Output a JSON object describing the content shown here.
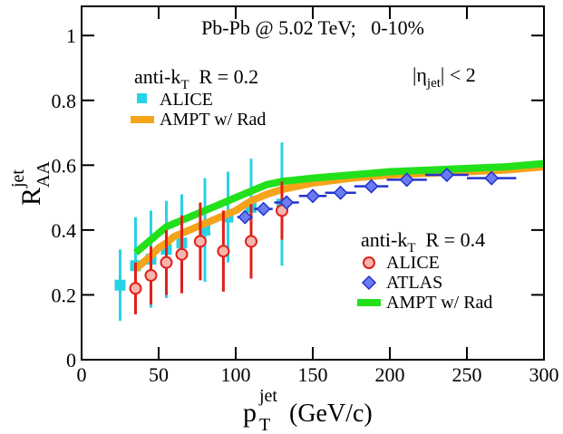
{
  "chart_data": {
    "type": "errorbar",
    "title": "Pb-Pb @ 5.02 TeV;   0-10%",
    "x_label": {
      "main": "p",
      "sup": "jet",
      "sub": "T",
      "rest": " (GeV/c)"
    },
    "y_label": {
      "main": "R",
      "sup": "jet",
      "sub": "AA"
    },
    "annotation": [
      {
        "t": "|η"
      },
      {
        "t": "jet",
        "s": "sub"
      },
      {
        "t": "| < 2"
      }
    ],
    "xlim": [
      0,
      300
    ],
    "ylim": [
      0,
      1.09
    ],
    "xticks": [
      0,
      50,
      100,
      150,
      200,
      250,
      300
    ],
    "yticks": [
      0,
      0.2,
      0.4,
      0.6,
      0.8,
      1
    ],
    "legends": [
      {
        "title": [
          {
            "t": "anti-k"
          },
          {
            "t": "T",
            "s": "sub"
          },
          {
            "t": "  R = 0.2"
          }
        ],
        "series": [
          0,
          1
        ]
      },
      {
        "title": [
          {
            "t": "anti-k"
          },
          {
            "t": "T",
            "s": "sub"
          },
          {
            "t": "  R = 0.4"
          }
        ],
        "series": [
          3,
          4,
          2
        ]
      }
    ],
    "series": [
      {
        "name": "ALICE",
        "color": "#27d3e6",
        "marker": "square",
        "x": [
          25,
          35,
          45,
          55,
          65,
          80,
          95,
          110,
          130
        ],
        "values": [
          0.23,
          0.29,
          0.31,
          0.34,
          0.36,
          0.4,
          0.44,
          0.47,
          0.48
        ],
        "errors": [
          0.11,
          0.15,
          0.15,
          0.15,
          0.15,
          0.16,
          0.14,
          0.15,
          0.19
        ]
      },
      {
        "name": "AMPT w/ Rad",
        "color": "#f5a31a",
        "marker": "step",
        "x": [
          35,
          40,
          45,
          50,
          55,
          60,
          70,
          80,
          90,
          100,
          110,
          120,
          130,
          140,
          150,
          175,
          200,
          225,
          250,
          275,
          300
        ],
        "values": [
          0.28,
          0.3,
          0.32,
          0.345,
          0.36,
          0.38,
          0.4,
          0.42,
          0.44,
          0.46,
          0.49,
          0.51,
          0.525,
          0.535,
          0.545,
          0.56,
          0.57,
          0.575,
          0.58,
          0.585,
          0.595
        ]
      },
      {
        "name": "AMPT w/ Rad",
        "color": "#22e01a",
        "marker": "step",
        "x": [
          35,
          40,
          45,
          50,
          55,
          60,
          70,
          80,
          90,
          100,
          110,
          120,
          130,
          140,
          150,
          175,
          200,
          225,
          250,
          275,
          300
        ],
        "values": [
          0.33,
          0.35,
          0.37,
          0.39,
          0.41,
          0.42,
          0.44,
          0.46,
          0.48,
          0.5,
          0.52,
          0.54,
          0.55,
          0.555,
          0.56,
          0.57,
          0.58,
          0.585,
          0.59,
          0.595,
          0.605
        ]
      },
      {
        "name": "ALICE",
        "color": "#e0201a",
        "marker": "circle",
        "x": [
          35,
          45,
          55,
          65,
          77,
          92,
          110,
          130
        ],
        "values": [
          0.22,
          0.26,
          0.3,
          0.325,
          0.365,
          0.335,
          0.365,
          0.46
        ],
        "errors": [
          0.08,
          0.09,
          0.1,
          0.12,
          0.12,
          0.125,
          0.115,
          0.09
        ]
      },
      {
        "name": "ATLAS",
        "color": "#2233cc",
        "marker": "diamond",
        "x": [
          106,
          118,
          133,
          150,
          168,
          188,
          211,
          237,
          266
        ],
        "values": [
          0.44,
          0.465,
          0.485,
          0.505,
          0.515,
          0.535,
          0.555,
          0.57,
          0.56
        ],
        "xerrors": [
          5,
          6,
          8,
          9,
          10,
          11,
          13,
          14,
          16
        ]
      }
    ]
  }
}
